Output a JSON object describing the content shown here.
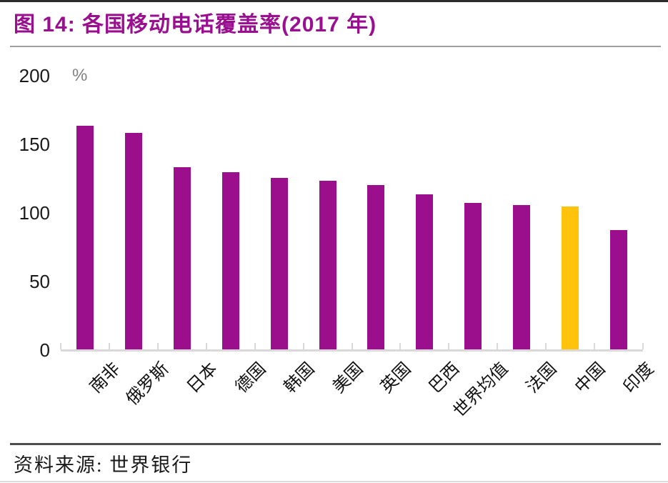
{
  "header": {
    "title": "图 14:  各国移动电话覆盖率(2017 年)"
  },
  "chart_data": {
    "type": "bar",
    "title": "图 14:  各国移动电话覆盖率(2017 年)",
    "unit_label": "%",
    "categories": [
      "南非",
      "俄罗斯",
      "日本",
      "德国",
      "韩国",
      "美国",
      "英国",
      "巴西",
      "世界均值",
      "法国",
      "中国",
      "印度"
    ],
    "values": [
      163,
      158,
      133,
      129,
      125,
      123,
      120,
      113,
      107,
      105,
      104,
      87
    ],
    "ylim": [
      0,
      200
    ],
    "yticks": [
      0,
      50,
      100,
      150,
      200
    ],
    "grid": false,
    "legend": false,
    "highlight_index": 10,
    "colors": {
      "bar": "#9b0f8c",
      "highlight": "#ffc30b",
      "title": "#990f90",
      "axis": "#d9d9d9",
      "unit_text": "#808080",
      "tick_text": "#1a1a1a"
    }
  },
  "footer": {
    "source": "资料来源:  世界银行"
  }
}
